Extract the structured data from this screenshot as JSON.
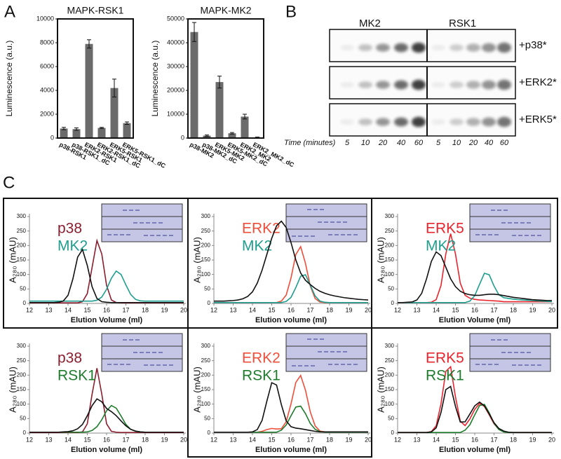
{
  "panel_labels": [
    "A",
    "B",
    "C"
  ],
  "blot": {
    "groups": [
      "MK2",
      "RSK1"
    ],
    "rows": [
      "+p38*",
      "+ERK2*",
      "+ERK5*"
    ],
    "time_label": "Time (minutes)",
    "times": [
      5,
      10,
      20,
      40,
      60,
      5,
      10,
      20,
      40,
      60
    ]
  },
  "chart_data": [
    {
      "type": "bar",
      "title": "MAPK-RSK1",
      "ylabel": "Luminescence (a.u.)",
      "color": "#6b6b6b",
      "categories": [
        "p38-RSK1",
        "p38-RSK1_dC",
        "ERK2-RSK1",
        "ERK2-RSK1_dC",
        "ERK5-RSK1",
        "ERK5-RSK1_dC"
      ],
      "values": [
        800,
        750,
        7900,
        850,
        4200,
        1250
      ],
      "errors": [
        100,
        100,
        350,
        50,
        750,
        100
      ],
      "ylim": [
        0,
        10000
      ],
      "yticks": [
        0,
        2000,
        4000,
        6000,
        8000,
        10000
      ]
    },
    {
      "type": "bar",
      "title": "MAPK-MK2",
      "ylabel": "Luminescence (a.u.)",
      "color": "#6b6b6b",
      "categories": [
        "p38-MK2",
        "p38-MK2_dC",
        "ERK5-MK2",
        "ERK5-MK2_dC",
        "ERK2_MK2",
        "ERK2_MK2_dC"
      ],
      "values": [
        44500,
        1000,
        23500,
        2000,
        9000,
        300
      ],
      "errors": [
        4000,
        300,
        2500,
        300,
        1000,
        100
      ],
      "ylim": [
        0,
        50000
      ],
      "yticks": [
        0,
        10000,
        20000,
        30000,
        40000,
        50000
      ]
    },
    {
      "type": "line",
      "ylabel": "A₂₈₀ (mAU)",
      "xlabel": "Elution Volume (ml)",
      "xlim": [
        12,
        20
      ],
      "xticks": [
        12,
        13,
        14,
        15,
        16,
        17,
        18,
        19,
        20
      ],
      "ylim": [
        0,
        300
      ],
      "yticks": [
        0,
        50,
        100,
        150,
        200,
        250,
        300
      ],
      "x": [
        12,
        12.25,
        12.5,
        12.75,
        13,
        13.25,
        13.5,
        13.75,
        14,
        14.25,
        14.5,
        14.75,
        15,
        15.25,
        15.5,
        15.75,
        16,
        16.25,
        16.5,
        16.75,
        17,
        17.25,
        17.5,
        17.75,
        18,
        18.25,
        18.5,
        18.75,
        19,
        19.25,
        19.5,
        19.75,
        20
      ],
      "series": [
        {
          "name": "p38",
          "color": "#8b1d2e",
          "values": [
            2,
            2,
            2,
            2,
            2,
            2,
            2,
            2,
            2,
            2,
            2,
            6,
            34,
            125,
            217,
            171,
            62,
            12,
            3,
            2,
            2,
            2,
            2,
            2,
            2,
            2,
            2,
            2,
            2,
            2,
            2,
            2,
            2
          ]
        },
        {
          "name": "MK2",
          "color": "#1f9e8e",
          "values": [
            8,
            8,
            8,
            8,
            8,
            8,
            8,
            8,
            8,
            8,
            8,
            8,
            8,
            8,
            11,
            22,
            49,
            87,
            112,
            100,
            64,
            31,
            14,
            9,
            8,
            8,
            8,
            8,
            8,
            8,
            8,
            8,
            8
          ]
        },
        {
          "color": "#111111",
          "values": [
            3,
            3,
            3,
            3,
            3,
            3,
            4,
            8,
            28,
            84,
            160,
            186,
            131,
            57,
            17,
            6,
            4,
            3,
            3,
            3,
            3,
            3,
            3,
            3,
            3,
            3,
            3,
            3,
            3,
            3,
            3,
            3,
            3
          ]
        }
      ]
    },
    {
      "type": "line",
      "ylabel": "A₂₈₀ (mAU)",
      "xlabel": "Elution volume (ml)",
      "xlim": [
        12,
        20
      ],
      "xticks": [
        12,
        13,
        14,
        15,
        16,
        17,
        18,
        19,
        20
      ],
      "ylim": [
        0,
        300
      ],
      "yticks": [
        0,
        50,
        100,
        150,
        200,
        250,
        300
      ],
      "x": [
        12,
        12.25,
        12.5,
        12.75,
        13,
        13.25,
        13.5,
        13.75,
        14,
        14.25,
        14.5,
        14.75,
        15,
        15.25,
        15.5,
        15.75,
        16,
        16.25,
        16.5,
        16.75,
        17,
        17.25,
        17.5,
        17.75,
        18,
        18.25,
        18.5,
        18.75,
        19,
        19.25,
        19.5,
        19.75,
        20
      ],
      "series": [
        {
          "name": "ERK2",
          "color": "#ef4e3a",
          "values": [
            3,
            3,
            3,
            3,
            3,
            3,
            3,
            3,
            3,
            3,
            3,
            3,
            3,
            3,
            8,
            29,
            88,
            169,
            196,
            138,
            60,
            17,
            5,
            3,
            3,
            3,
            3,
            3,
            3,
            3,
            3,
            3,
            3
          ]
        },
        {
          "name": "MK2",
          "color": "#1f9e8e",
          "values": [
            3,
            3,
            3,
            3,
            3,
            3,
            3,
            3,
            3,
            3,
            3,
            3,
            3,
            3,
            3,
            7,
            21,
            55,
            94,
            99,
            63,
            26,
            8,
            4,
            3,
            3,
            3,
            3,
            3,
            3,
            3,
            3,
            3
          ]
        },
        {
          "color": "#111111",
          "values": [
            8,
            8,
            8,
            9,
            10,
            12,
            16,
            24,
            40,
            70,
            115,
            170,
            225,
            268,
            284,
            262,
            210,
            150,
            105,
            80,
            65,
            52,
            42,
            35,
            30,
            26,
            23,
            20,
            18,
            16,
            14,
            13,
            12
          ]
        }
      ]
    },
    {
      "type": "line",
      "ylabel": "A₂₈₀ (mAU)",
      "xlabel": "Elution Volume (ml)",
      "xlim": [
        12,
        20
      ],
      "xticks": [
        12,
        13,
        14,
        15,
        16,
        17,
        18,
        19,
        20
      ],
      "ylim": [
        0,
        300
      ],
      "yticks": [
        0,
        50,
        100,
        150,
        200,
        250,
        300
      ],
      "x": [
        12,
        12.25,
        12.5,
        12.75,
        13,
        13.25,
        13.5,
        13.75,
        14,
        14.25,
        14.5,
        14.75,
        15,
        15.25,
        15.5,
        15.75,
        16,
        16.25,
        16.5,
        16.75,
        17,
        17.25,
        17.5,
        17.75,
        18,
        18.25,
        18.5,
        18.75,
        19,
        19.25,
        19.5,
        19.75,
        20
      ],
      "series": [
        {
          "name": "ERK5",
          "color": "#e8252e",
          "values": [
            3,
            3,
            3,
            3,
            3,
            3,
            3,
            4,
            13,
            62,
            171,
            241,
            171,
            70,
            28,
            18,
            14,
            12,
            11,
            10,
            9,
            8,
            6,
            6,
            6,
            6,
            6,
            6,
            6,
            6,
            6,
            6,
            6
          ]
        },
        {
          "name": "MK2",
          "color": "#1f9e8e",
          "values": [
            3,
            3,
            3,
            3,
            3,
            3,
            3,
            3,
            3,
            3,
            3,
            3,
            3,
            3,
            3,
            8,
            27,
            66,
            104,
            99,
            60,
            30,
            20,
            17,
            15,
            13,
            12,
            11,
            10,
            9,
            8,
            7,
            6
          ]
        },
        {
          "color": "#111111",
          "values": [
            3,
            3,
            4,
            5,
            12,
            35,
            85,
            145,
            178,
            165,
            125,
            85,
            58,
            42,
            34,
            30,
            28,
            28,
            30,
            32,
            32,
            30,
            27,
            24,
            21,
            19,
            17,
            15,
            13,
            12,
            11,
            10,
            10
          ]
        }
      ]
    },
    {
      "type": "line",
      "ylabel": "A₂₈₀ (mAU)",
      "xlabel": "Elution volume (ml)",
      "xlim": [
        12,
        20
      ],
      "xticks": [
        12,
        13,
        14,
        15,
        16,
        17,
        18,
        19,
        20
      ],
      "ylim": [
        0,
        300
      ],
      "yticks": [
        0,
        50,
        100,
        150,
        200,
        250,
        300
      ],
      "x": [
        12,
        12.25,
        12.5,
        12.75,
        13,
        13.25,
        13.5,
        13.75,
        14,
        14.25,
        14.5,
        14.75,
        15,
        15.25,
        15.5,
        15.75,
        16,
        16.25,
        16.5,
        16.75,
        17,
        17.25,
        17.5,
        17.75,
        18,
        18.25,
        18.5,
        18.75,
        19,
        19.25,
        19.5,
        19.75,
        20
      ],
      "series": [
        {
          "name": "p38",
          "color": "#8b1d2e",
          "values": [
            2,
            2,
            2,
            2,
            2,
            2,
            2,
            2,
            2,
            2,
            2,
            4,
            32,
            135,
            224,
            135,
            32,
            6,
            3,
            2,
            2,
            2,
            2,
            2,
            2,
            2,
            2,
            2,
            2,
            2,
            2,
            2,
            2
          ]
        },
        {
          "name": "RSK1",
          "color": "#1e7b2c",
          "values": [
            3,
            3,
            3,
            3,
            3,
            3,
            3,
            3,
            3,
            3,
            3,
            3,
            4,
            9,
            22,
            46,
            77,
            95,
            86,
            59,
            30,
            13,
            6,
            4,
            3,
            3,
            3,
            3,
            3,
            3,
            3,
            3,
            3
          ]
        },
        {
          "color": "#111111",
          "values": [
            3,
            3,
            3,
            3,
            3,
            3,
            3,
            4,
            5,
            8,
            15,
            30,
            60,
            95,
            118,
            108,
            85,
            74,
            60,
            42,
            25,
            13,
            7,
            4,
            3,
            3,
            3,
            3,
            3,
            3,
            3,
            3,
            3
          ]
        }
      ]
    },
    {
      "type": "line",
      "ylabel": "A₂₈₀ (mAU)",
      "xlabel": "Elution volume (ml)",
      "xlim": [
        12,
        20
      ],
      "xticks": [
        12,
        13,
        14,
        15,
        16,
        17,
        18,
        19,
        20
      ],
      "ylim": [
        0,
        300
      ],
      "yticks": [
        0,
        50,
        100,
        150,
        200,
        250,
        300
      ],
      "x": [
        12,
        12.25,
        12.5,
        12.75,
        13,
        13.25,
        13.5,
        13.75,
        14,
        14.25,
        14.5,
        14.75,
        15,
        15.25,
        15.5,
        15.75,
        16,
        16.25,
        16.5,
        16.75,
        17,
        17.25,
        17.5,
        17.75,
        18,
        18.25,
        18.5,
        18.75,
        19,
        19.25,
        19.5,
        19.75,
        20
      ],
      "series": [
        {
          "name": "ERK2",
          "color": "#ef4e3a",
          "values": [
            3,
            3,
            3,
            3,
            3,
            3,
            3,
            3,
            3,
            3,
            6,
            12,
            16,
            14,
            15,
            39,
            101,
            175,
            199,
            148,
            73,
            25,
            7,
            4,
            3,
            3,
            3,
            3,
            3,
            3,
            3,
            3,
            3
          ]
        },
        {
          "name": "RSK1",
          "color": "#1e7b2c",
          "values": [
            3,
            3,
            3,
            3,
            3,
            3,
            3,
            3,
            3,
            3,
            3,
            3,
            3,
            3,
            10,
            28,
            60,
            90,
            93,
            67,
            33,
            13,
            5,
            3,
            3,
            3,
            3,
            3,
            3,
            3,
            3,
            3,
            3
          ]
        },
        {
          "color": "#111111",
          "values": [
            3,
            3,
            3,
            3,
            3,
            3,
            3,
            3,
            4,
            12,
            44,
            111,
            174,
            166,
            98,
            42,
            22,
            17,
            15,
            12,
            9,
            6,
            4,
            4,
            4,
            4,
            4,
            4,
            4,
            4,
            4,
            4,
            4
          ]
        }
      ]
    },
    {
      "type": "line",
      "ylabel": "A₂₈₀ (mAU)",
      "xlabel": "Elution volume (ml)",
      "xlim": [
        12,
        20
      ],
      "xticks": [
        12,
        13,
        14,
        15,
        16,
        17,
        18,
        19,
        20
      ],
      "ylim": [
        0,
        300
      ],
      "yticks": [
        0,
        50,
        100,
        150,
        200,
        250,
        300
      ],
      "x": [
        12,
        12.25,
        12.5,
        12.75,
        13,
        13.25,
        13.5,
        13.75,
        14,
        14.25,
        14.5,
        14.75,
        15,
        15.25,
        15.5,
        15.75,
        16,
        16.25,
        16.5,
        16.75,
        17,
        17.25,
        17.5,
        17.75,
        18,
        18.25,
        18.5,
        18.75,
        19,
        19.25,
        19.5,
        19.75,
        20
      ],
      "series": [
        {
          "name": "ERK5",
          "color": "#e8252e",
          "values": [
            2,
            2,
            2,
            2,
            2,
            2,
            2,
            5,
            25,
            101,
            213,
            229,
            125,
            41,
            26,
            49,
            82,
            102,
            92,
            63,
            32,
            13,
            5,
            2,
            2,
            2,
            2,
            2,
            2,
            2,
            2,
            2,
            2
          ]
        },
        {
          "name": "RSK1",
          "color": "#1e7b2c",
          "values": [
            2,
            2,
            2,
            2,
            2,
            2,
            2,
            2,
            2,
            2,
            2,
            2,
            2,
            2,
            10,
            29,
            63,
            95,
            99,
            70,
            34,
            12,
            4,
            2,
            2,
            2,
            2,
            2,
            2,
            2,
            2,
            2,
            2
          ]
        },
        {
          "color": "#111111",
          "values": [
            2,
            2,
            2,
            2,
            2,
            2,
            2,
            4,
            18,
            71,
            150,
            161,
            92,
            38,
            39,
            66,
            94,
            107,
            94,
            66,
            36,
            16,
            7,
            3,
            2,
            2,
            2,
            2,
            2,
            2,
            2,
            2,
            2
          ]
        }
      ]
    }
  ]
}
